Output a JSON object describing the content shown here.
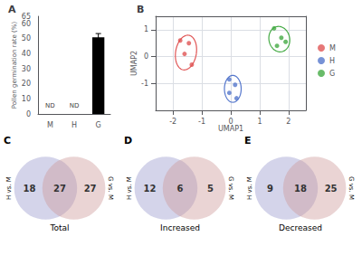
{
  "chart_data": [
    {
      "type": "bar",
      "title": "A",
      "categories": [
        "M",
        "H",
        "G"
      ],
      "values": [
        0,
        0,
        51
      ],
      "errors": [
        0,
        0,
        2.5
      ],
      "color": "#000000",
      "ylabel": "Pollen germination rate (%)",
      "ylim": [
        0,
        65
      ],
      "yticks": [
        0,
        10,
        20,
        30,
        40,
        50,
        60
      ],
      "grid": false,
      "annotations": [
        {
          "text": "ND",
          "x": "M",
          "y": 2.5
        },
        {
          "text": "ND",
          "x": "H",
          "y": 2.5
        }
      ]
    },
    {
      "type": "scatter",
      "title": "B",
      "xlabel": "UMAP1",
      "ylabel": "UMAP2",
      "xlim": [
        -2.6,
        2.6
      ],
      "ylim": [
        -2.0,
        1.5
      ],
      "xticks": [
        -2,
        -1,
        0,
        1,
        2
      ],
      "yticks": [
        -1,
        0,
        1
      ],
      "grid": true,
      "legend": "right",
      "series": [
        {
          "name": "M",
          "color": "#e05555",
          "values": [
            [
              -1.75,
              0.6
            ],
            [
              -1.45,
              0.5
            ],
            [
              -1.6,
              0.1
            ],
            [
              -1.35,
              -0.3
            ]
          ],
          "ellipse": {
            "cx": -1.55,
            "cy": 0.15,
            "w": 0.72,
            "h": 1.3,
            "angle": -8
          }
        },
        {
          "name": "H",
          "color": "#5577cc",
          "values": [
            [
              -0.05,
              -0.85
            ],
            [
              0.15,
              -1.05
            ],
            [
              -0.05,
              -1.35
            ],
            [
              0.2,
              -1.55
            ]
          ],
          "ellipse": {
            "cx": 0.07,
            "cy": -1.2,
            "w": 0.58,
            "h": 1.0,
            "angle": 0
          }
        },
        {
          "name": "G",
          "color": "#44aa44",
          "values": [
            [
              1.5,
              1.05
            ],
            [
              1.75,
              0.7
            ],
            [
              1.6,
              0.4
            ],
            [
              1.9,
              0.55
            ]
          ],
          "ellipse": {
            "cx": 1.68,
            "cy": 0.65,
            "w": 0.72,
            "h": 0.95,
            "angle": 8
          }
        }
      ]
    },
    {
      "type": "venn",
      "title": "C",
      "subtitle": "Total",
      "set_labels": [
        "H vs. M",
        "G vs. M"
      ],
      "colors": [
        "#9999cc",
        "#cc9999"
      ],
      "values": [
        18,
        27,
        27
      ]
    },
    {
      "type": "venn",
      "title": "D",
      "subtitle": "Increased",
      "set_labels": [
        "H vs. M",
        "G vs. M"
      ],
      "colors": [
        "#9999cc",
        "#cc9999"
      ],
      "values": [
        12,
        6,
        5
      ]
    },
    {
      "type": "venn",
      "title": "E",
      "subtitle": "Decreased",
      "set_labels": [
        "H vs. M",
        "G vs. M"
      ],
      "colors": [
        "#9999cc",
        "#cc9999"
      ],
      "values": [
        9,
        18,
        25
      ]
    }
  ]
}
